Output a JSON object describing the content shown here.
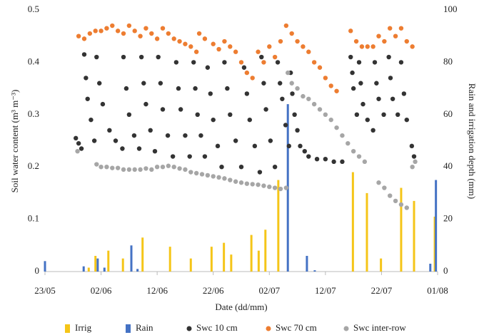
{
  "chart_data": {
    "type": "scatter",
    "xlabel": "Date (dd/mm)",
    "ylabel": "Soil water content (m³ m⁻³)",
    "y2label": "Rain and irrigation  depth (mm)",
    "xlim": [
      0,
      70
    ],
    "xticks": [
      {
        "value": 0,
        "label": "23/05"
      },
      {
        "value": 10,
        "label": "02/06"
      },
      {
        "value": 20,
        "label": "12/06"
      },
      {
        "value": 30,
        "label": "22/06"
      },
      {
        "value": 40,
        "label": "02/07"
      },
      {
        "value": 50,
        "label": "12/07"
      },
      {
        "value": 60,
        "label": "22/07"
      },
      {
        "value": 70,
        "label": "01/08"
      }
    ],
    "ylim": [
      0,
      0.5
    ],
    "yticks": [
      0,
      0.1,
      0.2,
      0.3,
      0.4,
      0.5
    ],
    "y2lim": [
      0,
      100
    ],
    "y2ticks": [
      0,
      20,
      40,
      60,
      80,
      100
    ],
    "series": [
      {
        "name": "Irrig",
        "type": "bar",
        "axis": "y2",
        "color": "#f5c518",
        "x": [
          7.8,
          9.0,
          11.3,
          13.9,
          17.4,
          22.3,
          26.0,
          29.7,
          31.9,
          33.2,
          36.8,
          38.1,
          39.3,
          41.6,
          54.9,
          57.4,
          59.9,
          63.5,
          65.8,
          69.5
        ],
        "values": [
          1.5,
          6,
          8,
          5,
          13,
          9.5,
          5,
          9.5,
          11,
          6.5,
          14,
          8,
          16,
          35,
          38,
          30,
          5,
          32,
          27,
          21
        ]
      },
      {
        "name": "Rain",
        "type": "bar",
        "axis": "y2",
        "color": "#4472c4",
        "x": [
          0.0,
          6.9,
          9.4,
          10.6,
          15.4,
          16.5,
          43.3,
          46.7,
          48.1,
          68.7,
          69.7
        ],
        "values": [
          4,
          2,
          5,
          1.5,
          10,
          1,
          64,
          6,
          0.5,
          3,
          35
        ]
      },
      {
        "name": "Swc 10 cm",
        "type": "scatter",
        "color": "#333333",
        "x": [
          5.5,
          6.0,
          6.5,
          7.0,
          7.3,
          7.6,
          8.2,
          8.8,
          9.2,
          9.7,
          10.3,
          11.5,
          12.6,
          13.8,
          14.0,
          14.5,
          15.0,
          15.9,
          16.8,
          17.2,
          17.6,
          18.0,
          18.8,
          19.6,
          20.2,
          20.6,
          21.0,
          21.9,
          22.8,
          23.4,
          23.8,
          24.2,
          25.0,
          25.8,
          26.5,
          26.8,
          27.2,
          27.8,
          28.5,
          29.0,
          29.5,
          30.0,
          30.8,
          31.5,
          32.0,
          32.5,
          33.0,
          34.0,
          35.0,
          35.5,
          36.0,
          36.5,
          37.4,
          38.3,
          38.6,
          39.0,
          39.4,
          40.2,
          41.0,
          41.5,
          41.9,
          42.3,
          42.9,
          43.5,
          43.8,
          44.1,
          44.5,
          45.0,
          45.5,
          46.3,
          47.0,
          48.5,
          50.0,
          51.5,
          53.0,
          54.5,
          54.8,
          55.0,
          55.6,
          56.0,
          56.3,
          56.7,
          57.5,
          58.5,
          58.8,
          59.1,
          59.5,
          60.4,
          61.3,
          61.6,
          62.0,
          62.9,
          63.5,
          64.0,
          64.5,
          65.4,
          65.8
        ],
        "values": [
          0.255,
          0.245,
          0.235,
          0.415,
          0.37,
          0.33,
          0.29,
          0.25,
          0.41,
          0.36,
          0.32,
          0.27,
          0.25,
          0.235,
          0.41,
          0.35,
          0.3,
          0.26,
          0.235,
          0.41,
          0.36,
          0.32,
          0.27,
          0.23,
          0.41,
          0.36,
          0.31,
          0.26,
          0.22,
          0.4,
          0.35,
          0.31,
          0.26,
          0.22,
          0.4,
          0.35,
          0.3,
          0.26,
          0.22,
          0.39,
          0.34,
          0.29,
          0.24,
          0.2,
          0.4,
          0.35,
          0.3,
          0.25,
          0.2,
          0.39,
          0.34,
          0.29,
          0.24,
          0.19,
          0.41,
          0.36,
          0.31,
          0.25,
          0.2,
          0.4,
          0.36,
          0.33,
          0.28,
          0.24,
          0.38,
          0.34,
          0.3,
          0.27,
          0.24,
          0.23,
          0.22,
          0.215,
          0.215,
          0.21,
          0.21,
          0.41,
          0.38,
          0.35,
          0.3,
          0.4,
          0.36,
          0.32,
          0.29,
          0.27,
          0.4,
          0.36,
          0.33,
          0.3,
          0.41,
          0.37,
          0.33,
          0.3,
          0.4,
          0.34,
          0.29,
          0.24,
          0.22
        ]
      },
      {
        "name": "Swc 70 cm",
        "type": "scatter",
        "color": "#ed7d31",
        "x": [
          6,
          7,
          8,
          9,
          10,
          11,
          12,
          13,
          14,
          15,
          16,
          17,
          18,
          19,
          20,
          21,
          22,
          23,
          24,
          25,
          26,
          27,
          27.5,
          28.5,
          30,
          31,
          32,
          33,
          34,
          35,
          36,
          37,
          38,
          39,
          40,
          41,
          42,
          43,
          44,
          45,
          46,
          47,
          48,
          49,
          50,
          51,
          52,
          54.5,
          55.5,
          56.5,
          57.5,
          58.5,
          59.5,
          60.5,
          61.5,
          62.5,
          63.5,
          64.5,
          65.5
        ],
        "values": [
          0.45,
          0.445,
          0.455,
          0.46,
          0.46,
          0.465,
          0.47,
          0.46,
          0.455,
          0.47,
          0.46,
          0.45,
          0.465,
          0.455,
          0.445,
          0.465,
          0.455,
          0.445,
          0.44,
          0.435,
          0.43,
          0.42,
          0.455,
          0.445,
          0.435,
          0.425,
          0.44,
          0.43,
          0.42,
          0.4,
          0.38,
          0.37,
          0.42,
          0.4,
          0.43,
          0.41,
          0.44,
          0.47,
          0.455,
          0.44,
          0.43,
          0.42,
          0.4,
          0.39,
          0.37,
          0.355,
          0.345,
          0.46,
          0.44,
          0.43,
          0.43,
          0.43,
          0.45,
          0.44,
          0.465,
          0.45,
          0.465,
          0.44,
          0.43
        ]
      },
      {
        "name": "Swc inter-row",
        "type": "scatter",
        "color": "#a6a6a6",
        "x": [
          5.8,
          9.2,
          10,
          11,
          12,
          13,
          14,
          15,
          16,
          17,
          18,
          19,
          20,
          21,
          22,
          23,
          24,
          25,
          26,
          27,
          28,
          29,
          30,
          31,
          32,
          33,
          34,
          35,
          36,
          37,
          38,
          39,
          40,
          41,
          42,
          43,
          43.3,
          44,
          45,
          46,
          47,
          48,
          49,
          50,
          51,
          52,
          53,
          54,
          55,
          56,
          57,
          59.5,
          60.5,
          61.5,
          62.5,
          63.5,
          64.5,
          65.5,
          66
        ],
        "values": [
          0.23,
          0.205,
          0.2,
          0.2,
          0.198,
          0.198,
          0.195,
          0.195,
          0.195,
          0.195,
          0.197,
          0.195,
          0.2,
          0.2,
          0.202,
          0.2,
          0.197,
          0.195,
          0.19,
          0.188,
          0.186,
          0.184,
          0.182,
          0.18,
          0.178,
          0.175,
          0.172,
          0.17,
          0.168,
          0.167,
          0.166,
          0.164,
          0.162,
          0.16,
          0.158,
          0.16,
          0.38,
          0.36,
          0.35,
          0.335,
          0.33,
          0.32,
          0.31,
          0.3,
          0.29,
          0.275,
          0.26,
          0.245,
          0.23,
          0.22,
          0.21,
          0.17,
          0.16,
          0.145,
          0.135,
          0.128,
          0.122,
          0.2,
          0.21
        ]
      }
    ]
  }
}
